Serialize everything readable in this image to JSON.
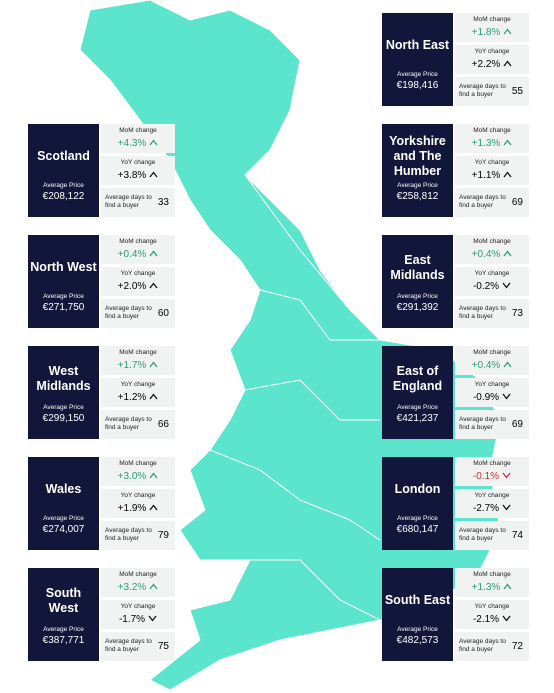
{
  "labels": {
    "mom": "MoM change",
    "yoy": "YoY change",
    "avg_price": "Average Price",
    "days": "Average days to find a buyer"
  },
  "regions": [
    {
      "name": "North East",
      "price": "€198,416",
      "mom": "+1.8%",
      "yoy": "+2.2%",
      "days": 55,
      "side": "right",
      "row": 0
    },
    {
      "name": "Scotland",
      "price": "€208,122",
      "mom": "+4.3%",
      "yoy": "+3.8%",
      "days": 33,
      "side": "left",
      "row": 1
    },
    {
      "name": "Yorkshire and The Humber",
      "price": "€258,812",
      "mom": "+1.3%",
      "yoy": "+1.1%",
      "days": 69,
      "side": "right",
      "row": 1
    },
    {
      "name": "North West",
      "price": "€271,750",
      "mom": "+0.4%",
      "yoy": "+2.0%",
      "days": 60,
      "side": "left",
      "row": 2
    },
    {
      "name": "East Midlands",
      "price": "€291,392",
      "mom": "+0.4%",
      "yoy": "-0.2%",
      "days": 73,
      "side": "right",
      "row": 2
    },
    {
      "name": "West Midlands",
      "price": "€299,150",
      "mom": "+1.7%",
      "yoy": "+1.2%",
      "days": 66,
      "side": "left",
      "row": 3
    },
    {
      "name": "East of England",
      "price": "€421,237",
      "mom": "+0.4%",
      "yoy": "-0.9%",
      "days": 69,
      "side": "right",
      "row": 3
    },
    {
      "name": "Wales",
      "price": "€274,007",
      "mom": "+3.0%",
      "yoy": "+1.9%",
      "days": 79,
      "side": "left",
      "row": 4
    },
    {
      "name": "London",
      "price": "€680,147",
      "mom": "-0.1%",
      "yoy": "-2.7%",
      "days": 74,
      "side": "right",
      "row": 4
    },
    {
      "name": "South West",
      "price": "€387,771",
      "mom": "+3.2%",
      "yoy": "-1.7%",
      "days": 75,
      "side": "left",
      "row": 5
    },
    {
      "name": "South East",
      "price": "€482,573",
      "mom": "+1.3%",
      "yoy": "-2.1%",
      "days": 72,
      "side": "right",
      "row": 5
    }
  ]
}
